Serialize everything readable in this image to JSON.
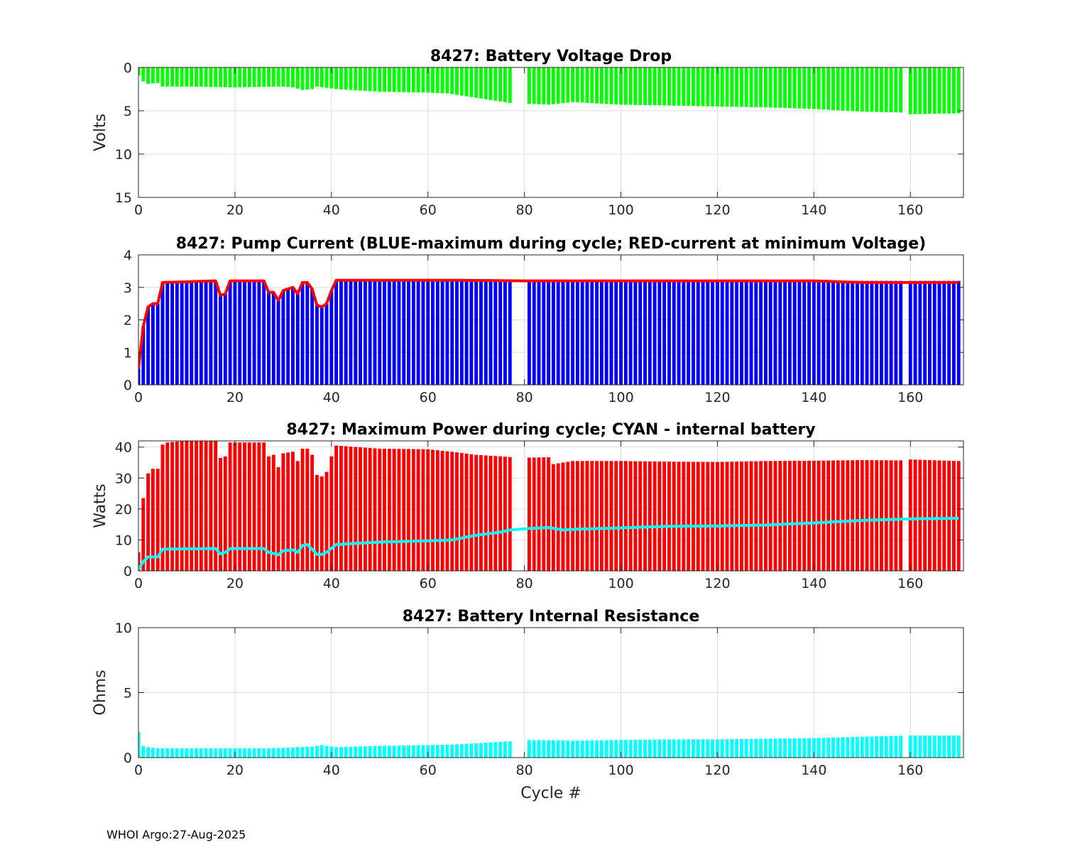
{
  "colors": {
    "voltage_bar": "#00ff00",
    "pump_bar": "#0000ff",
    "pump_line": "#ff0000",
    "power_bar": "#ff0000",
    "power_line": "#00ffff",
    "resistance_bar": "#00ffff"
  },
  "xlabel": "Cycle #",
  "footer": "WHOI Argo:27-Aug-2025",
  "chart_data": [
    {
      "type": "bar",
      "title": "8427: Battery Voltage Drop",
      "xlabel": "",
      "ylabel": "Volts",
      "xlim": [
        0,
        171
      ],
      "ylim": [
        0,
        15
      ],
      "y_reversed": true,
      "xticks": [
        0,
        20,
        40,
        60,
        80,
        100,
        120,
        140,
        160
      ],
      "yticks": [
        0,
        5,
        10,
        15
      ],
      "grid": true,
      "missing_cycles": [
        78,
        79,
        80,
        159
      ],
      "series": [
        {
          "name": "voltage drop",
          "kind": "bar",
          "knots": [
            [
              0,
              0.9
            ],
            [
              1,
              1.6
            ],
            [
              2,
              1.9
            ],
            [
              4,
              1.8
            ],
            [
              5,
              2.2
            ],
            [
              10,
              2.2
            ],
            [
              20,
              2.3
            ],
            [
              30,
              2.2
            ],
            [
              32,
              2.3
            ],
            [
              34,
              2.6
            ],
            [
              36,
              2.5
            ],
            [
              37,
              2.2
            ],
            [
              41,
              2.5
            ],
            [
              50,
              2.8
            ],
            [
              60,
              2.9
            ],
            [
              64,
              3.0
            ],
            [
              70,
              3.5
            ],
            [
              77,
              4.1
            ],
            [
              81,
              4.2
            ],
            [
              85,
              4.3
            ],
            [
              90,
              4.0
            ],
            [
              100,
              4.3
            ],
            [
              110,
              4.4
            ],
            [
              120,
              4.5
            ],
            [
              130,
              4.6
            ],
            [
              140,
              4.8
            ],
            [
              150,
              5.1
            ],
            [
              158,
              5.2
            ],
            [
              160,
              5.4
            ],
            [
              170,
              5.3
            ]
          ]
        }
      ]
    },
    {
      "type": "bar",
      "title": "8427: Pump Current (BLUE-maximum during cycle; RED-current at minimum Voltage)",
      "xlabel": "",
      "ylabel": "",
      "xlim": [
        0,
        171
      ],
      "ylim": [
        0,
        4
      ],
      "y_reversed": false,
      "xticks": [
        0,
        20,
        40,
        60,
        80,
        100,
        120,
        140,
        160
      ],
      "yticks": [
        0,
        1,
        2,
        3,
        4
      ],
      "grid": true,
      "missing_cycles": [
        78,
        79,
        80,
        159
      ],
      "series": [
        {
          "name": "BLUE-maximum during cycle",
          "kind": "bar",
          "knots": [
            [
              0,
              0.5
            ],
            [
              1,
              1.8
            ],
            [
              2,
              2.4
            ],
            [
              3,
              2.5
            ],
            [
              4,
              2.5
            ],
            [
              5,
              3.15
            ],
            [
              16,
              3.2
            ],
            [
              17,
              2.75
            ],
            [
              18,
              2.8
            ],
            [
              19,
              3.2
            ],
            [
              26,
              3.2
            ],
            [
              27,
              2.85
            ],
            [
              28,
              2.85
            ],
            [
              29,
              2.6
            ],
            [
              30,
              2.9
            ],
            [
              32,
              3.0
            ],
            [
              33,
              2.8
            ],
            [
              34,
              3.15
            ],
            [
              35,
              3.15
            ],
            [
              36,
              2.95
            ],
            [
              37,
              2.45
            ],
            [
              38,
              2.4
            ],
            [
              39,
              2.5
            ],
            [
              40,
              2.9
            ],
            [
              41,
              3.2
            ],
            [
              77,
              3.2
            ],
            [
              81,
              3.2
            ],
            [
              170,
              3.2
            ]
          ]
        },
        {
          "name": "RED-current at minimum Voltage",
          "kind": "line",
          "knots": [
            [
              0,
              0.5
            ],
            [
              1,
              1.8
            ],
            [
              2,
              2.4
            ],
            [
              3,
              2.5
            ],
            [
              4,
              2.5
            ],
            [
              5,
              3.15
            ],
            [
              16,
              3.2
            ],
            [
              17,
              2.75
            ],
            [
              18,
              2.8
            ],
            [
              19,
              3.2
            ],
            [
              26,
              3.2
            ],
            [
              27,
              2.85
            ],
            [
              28,
              2.85
            ],
            [
              29,
              2.6
            ],
            [
              30,
              2.9
            ],
            [
              32,
              3.0
            ],
            [
              33,
              2.8
            ],
            [
              34,
              3.15
            ],
            [
              35,
              3.15
            ],
            [
              36,
              2.95
            ],
            [
              37,
              2.45
            ],
            [
              38,
              2.4
            ],
            [
              39,
              2.5
            ],
            [
              40,
              2.9
            ],
            [
              41,
              3.22
            ],
            [
              65,
              3.22
            ],
            [
              80,
              3.2
            ],
            [
              100,
              3.2
            ],
            [
              140,
              3.2
            ],
            [
              150,
              3.15
            ],
            [
              170,
              3.15
            ]
          ]
        }
      ]
    },
    {
      "type": "bar",
      "title": "8427: Maximum Power during cycle; CYAN - internal battery",
      "xlabel": "",
      "ylabel": "Watts",
      "xlim": [
        0,
        171
      ],
      "ylim": [
        0,
        42
      ],
      "y_reversed": false,
      "xticks": [
        0,
        20,
        40,
        60,
        80,
        100,
        120,
        140,
        160
      ],
      "yticks": [
        0,
        10,
        20,
        30,
        40
      ],
      "grid": true,
      "missing_cycles": [
        78,
        79,
        80,
        159
      ],
      "series": [
        {
          "name": "maximum power",
          "kind": "bar",
          "knots": [
            [
              0,
              6
            ],
            [
              1,
              23.5
            ],
            [
              2,
              31.5
            ],
            [
              3,
              33
            ],
            [
              4,
              33
            ],
            [
              5,
              40.8
            ],
            [
              6,
              41.5
            ],
            [
              8,
              41.8
            ],
            [
              9,
              42
            ],
            [
              16,
              42
            ],
            [
              17,
              36.5
            ],
            [
              18,
              37
            ],
            [
              19,
              41.5
            ],
            [
              26,
              41.5
            ],
            [
              27,
              37
            ],
            [
              28,
              37.5
            ],
            [
              29,
              33.5
            ],
            [
              30,
              38
            ],
            [
              32,
              38.5
            ],
            [
              33,
              35.5
            ],
            [
              34,
              39.5
            ],
            [
              35,
              39.5
            ],
            [
              36,
              37.5
            ],
            [
              37,
              31
            ],
            [
              38,
              30.5
            ],
            [
              39,
              32
            ],
            [
              40,
              37
            ],
            [
              41,
              40.5
            ],
            [
              50,
              39.5
            ],
            [
              60,
              39.3
            ],
            [
              65,
              38.5
            ],
            [
              70,
              37.5
            ],
            [
              77,
              36.8
            ],
            [
              81,
              36.6
            ],
            [
              85,
              36.7
            ],
            [
              86,
              34.5
            ],
            [
              90,
              35.5
            ],
            [
              100,
              35.5
            ],
            [
              110,
              35.3
            ],
            [
              120,
              35.2
            ],
            [
              130,
              35.5
            ],
            [
              140,
              35.6
            ],
            [
              150,
              35.8
            ],
            [
              158,
              35.7
            ],
            [
              160,
              36
            ],
            [
              170,
              35.5
            ]
          ]
        },
        {
          "name": "CYAN - internal battery",
          "kind": "line",
          "knots": [
            [
              0,
              0.5
            ],
            [
              1,
              3
            ],
            [
              2,
              4.5
            ],
            [
              4,
              4.5
            ],
            [
              5,
              7
            ],
            [
              16,
              7.2
            ],
            [
              17,
              5.5
            ],
            [
              18,
              6
            ],
            [
              19,
              7.2
            ],
            [
              26,
              7.2
            ],
            [
              27,
              6
            ],
            [
              29,
              5.2
            ],
            [
              30,
              6.5
            ],
            [
              32,
              6.8
            ],
            [
              33,
              6
            ],
            [
              34,
              8.2
            ],
            [
              35,
              8.5
            ],
            [
              36,
              7
            ],
            [
              37,
              5.3
            ],
            [
              38,
              5.3
            ],
            [
              39,
              6
            ],
            [
              40,
              7.3
            ],
            [
              41,
              8.5
            ],
            [
              50,
              9.3
            ],
            [
              60,
              9.7
            ],
            [
              65,
              10
            ],
            [
              70,
              11.5
            ],
            [
              75,
              12.5
            ],
            [
              77,
              13.2
            ],
            [
              81,
              13.7
            ],
            [
              85,
              14
            ],
            [
              88,
              13.2
            ],
            [
              90,
              13.4
            ],
            [
              100,
              13.9
            ],
            [
              110,
              14.4
            ],
            [
              120,
              14.5
            ],
            [
              130,
              14.8
            ],
            [
              140,
              15.5
            ],
            [
              150,
              16.3
            ],
            [
              160,
              16.8
            ],
            [
              170,
              17
            ]
          ]
        }
      ]
    },
    {
      "type": "bar",
      "title": "8427: Battery Internal Resistance",
      "xlabel": "Cycle #",
      "ylabel": "Ohms",
      "xlim": [
        0,
        171
      ],
      "ylim": [
        0,
        10
      ],
      "y_reversed": false,
      "xticks": [
        0,
        20,
        40,
        60,
        80,
        100,
        120,
        140,
        160
      ],
      "yticks": [
        0,
        5,
        10
      ],
      "grid": true,
      "missing_cycles": [
        78,
        79,
        80,
        159
      ],
      "series": [
        {
          "name": "internal resistance",
          "kind": "bar",
          "knots": [
            [
              0,
              2.0
            ],
            [
              1,
              0.9
            ],
            [
              2,
              0.8
            ],
            [
              4,
              0.7
            ],
            [
              10,
              0.7
            ],
            [
              20,
              0.7
            ],
            [
              26,
              0.7
            ],
            [
              30,
              0.75
            ],
            [
              33,
              0.8
            ],
            [
              36,
              0.85
            ],
            [
              38,
              0.95
            ],
            [
              40,
              0.85
            ],
            [
              41,
              0.8
            ],
            [
              50,
              0.9
            ],
            [
              60,
              0.95
            ],
            [
              65,
              1.0
            ],
            [
              70,
              1.1
            ],
            [
              77,
              1.25
            ],
            [
              81,
              1.35
            ],
            [
              90,
              1.3
            ],
            [
              100,
              1.35
            ],
            [
              110,
              1.4
            ],
            [
              120,
              1.4
            ],
            [
              130,
              1.45
            ],
            [
              140,
              1.5
            ],
            [
              150,
              1.6
            ],
            [
              160,
              1.7
            ],
            [
              170,
              1.7
            ]
          ]
        }
      ]
    }
  ]
}
